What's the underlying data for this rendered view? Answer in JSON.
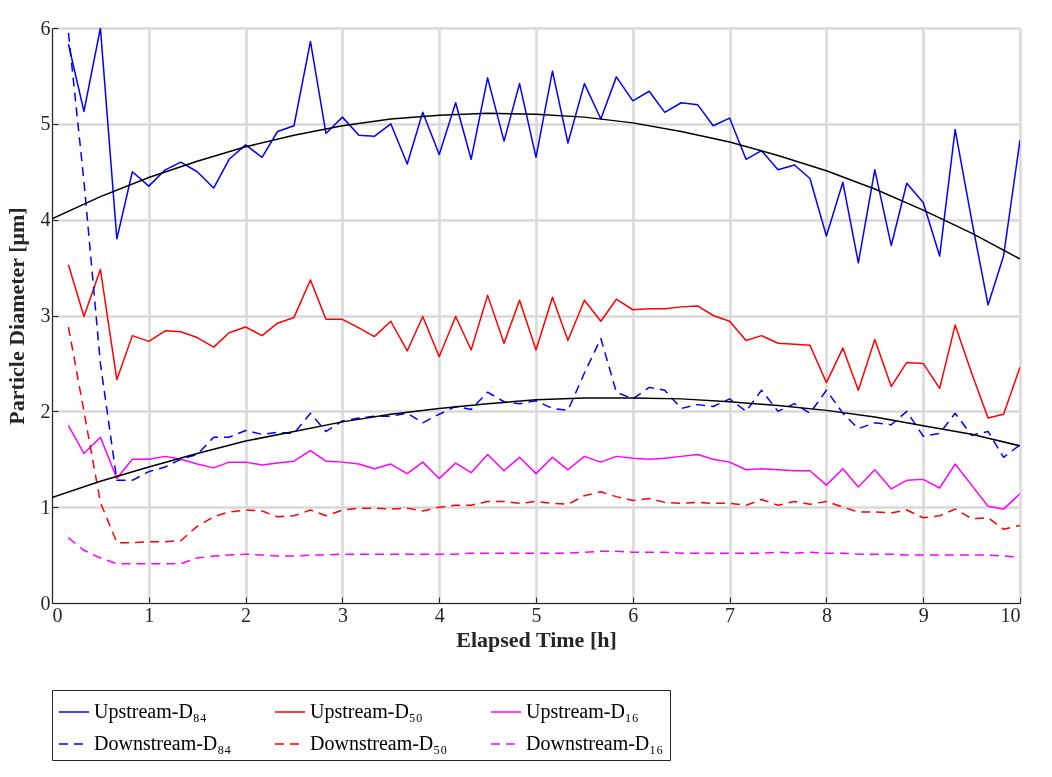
{
  "chart_data": {
    "type": "line",
    "xlabel": "Elapsed Time [h]",
    "ylabel": "Particle Diameter [μm]",
    "x": [
      0.17,
      0.33,
      0.5,
      0.67,
      0.83,
      1,
      1.17,
      1.33,
      1.5,
      1.67,
      1.83,
      2,
      2.17,
      2.33,
      2.5,
      2.67,
      2.83,
      3,
      3.17,
      3.33,
      3.5,
      3.67,
      3.83,
      4,
      4.17,
      4.33,
      4.5,
      4.67,
      4.83,
      5,
      5.17,
      5.33,
      5.5,
      5.67,
      5.83,
      6,
      6.17,
      6.33,
      6.5,
      6.67,
      6.83,
      7,
      7.17,
      7.33,
      7.5,
      7.67,
      7.83,
      8,
      8.17,
      8.33,
      8.5,
      8.67,
      8.83,
      9,
      9.17,
      9.33,
      9.5,
      9.67,
      9.83,
      10
    ],
    "series": [
      {
        "name": "Upstream-D₈₄",
        "color": "#0000ff",
        "line_style": "solid",
        "values": [
          5.83,
          5.13,
          6.0,
          3.8,
          4.5,
          4.35,
          4.52,
          4.6,
          4.5,
          4.33,
          4.63,
          4.78,
          4.65,
          4.92,
          4.98,
          5.86,
          4.9,
          5.07,
          4.88,
          4.87,
          5.0,
          4.58,
          5.12,
          4.68,
          5.22,
          4.63,
          5.48,
          4.82,
          5.42,
          4.65,
          5.55,
          4.8,
          5.42,
          5.05,
          5.49,
          5.24,
          5.34,
          5.12,
          5.22,
          5.2,
          4.98,
          5.06,
          4.63,
          4.72,
          4.52,
          4.57,
          4.43,
          3.83,
          4.39,
          3.55,
          4.52,
          3.73,
          4.38,
          4.18,
          3.62,
          4.94,
          4.0,
          3.11,
          3.62,
          4.83
        ]
      },
      {
        "name": "Upstream-D₅₀",
        "color": "#ff0000",
        "line_style": "solid",
        "values": [
          3.53,
          2.99,
          3.48,
          2.33,
          2.79,
          2.73,
          2.84,
          2.83,
          2.77,
          2.67,
          2.82,
          2.88,
          2.79,
          2.92,
          2.98,
          3.37,
          2.96,
          2.96,
          2.87,
          2.78,
          2.94,
          2.63,
          2.99,
          2.57,
          2.99,
          2.64,
          3.21,
          2.71,
          3.16,
          2.64,
          3.19,
          2.74,
          3.16,
          2.94,
          3.17,
          3.06,
          3.07,
          3.07,
          3.09,
          3.1,
          3.0,
          2.94,
          2.74,
          2.79,
          2.71,
          2.7,
          2.69,
          2.3,
          2.66,
          2.22,
          2.75,
          2.26,
          2.51,
          2.5,
          2.24,
          2.9,
          2.4,
          1.93,
          1.97,
          2.46
        ]
      },
      {
        "name": "Upstream-D₁₆",
        "color": "#ff00ff",
        "line_style": "solid",
        "values": [
          1.85,
          1.56,
          1.73,
          1.3,
          1.5,
          1.5,
          1.53,
          1.5,
          1.45,
          1.41,
          1.47,
          1.47,
          1.44,
          1.46,
          1.48,
          1.59,
          1.48,
          1.47,
          1.45,
          1.4,
          1.45,
          1.35,
          1.47,
          1.3,
          1.46,
          1.36,
          1.55,
          1.38,
          1.52,
          1.35,
          1.52,
          1.39,
          1.53,
          1.47,
          1.53,
          1.51,
          1.5,
          1.51,
          1.53,
          1.55,
          1.5,
          1.47,
          1.39,
          1.4,
          1.39,
          1.38,
          1.38,
          1.23,
          1.4,
          1.21,
          1.39,
          1.19,
          1.28,
          1.29,
          1.2,
          1.45,
          1.23,
          1.01,
          0.98,
          1.14
        ]
      },
      {
        "name": "Downstream-D₈₄",
        "color": "#0000ff",
        "line_style": "dashed",
        "values": [
          5.95,
          4.4,
          2.5,
          1.28,
          1.28,
          1.37,
          1.42,
          1.5,
          1.55,
          1.73,
          1.73,
          1.8,
          1.76,
          1.78,
          1.77,
          1.98,
          1.79,
          1.9,
          1.93,
          1.95,
          1.95,
          1.98,
          1.88,
          1.97,
          2.05,
          2.02,
          2.2,
          2.1,
          2.08,
          2.11,
          2.03,
          2.01,
          2.4,
          2.76,
          2.2,
          2.13,
          2.25,
          2.22,
          2.03,
          2.07,
          2.05,
          2.13,
          2.0,
          2.22,
          2.0,
          2.08,
          1.98,
          2.22,
          1.98,
          1.82,
          1.88,
          1.86,
          2.0,
          1.74,
          1.77,
          1.98,
          1.75,
          1.79,
          1.52,
          1.65
        ]
      },
      {
        "name": "Downstream-D₅₀",
        "color": "#ff0000",
        "line_style": "dashed",
        "values": [
          2.88,
          2.0,
          1.05,
          0.63,
          0.63,
          0.64,
          0.64,
          0.65,
          0.8,
          0.9,
          0.95,
          0.97,
          0.96,
          0.9,
          0.91,
          0.97,
          0.91,
          0.97,
          0.99,
          0.99,
          0.98,
          0.99,
          0.96,
          1.0,
          1.02,
          1.02,
          1.06,
          1.06,
          1.04,
          1.06,
          1.04,
          1.03,
          1.12,
          1.16,
          1.11,
          1.07,
          1.09,
          1.05,
          1.04,
          1.05,
          1.04,
          1.04,
          1.02,
          1.08,
          1.02,
          1.06,
          1.03,
          1.06,
          1.0,
          0.95,
          0.95,
          0.94,
          0.97,
          0.89,
          0.91,
          0.98,
          0.88,
          0.89,
          0.77,
          0.81
        ]
      },
      {
        "name": "Downstream-D₁₆",
        "color": "#ff00ff",
        "line_style": "dashed",
        "values": [
          0.68,
          0.55,
          0.47,
          0.41,
          0.41,
          0.41,
          0.41,
          0.41,
          0.47,
          0.49,
          0.5,
          0.51,
          0.5,
          0.49,
          0.49,
          0.5,
          0.5,
          0.51,
          0.51,
          0.51,
          0.51,
          0.51,
          0.51,
          0.51,
          0.51,
          0.52,
          0.52,
          0.52,
          0.52,
          0.52,
          0.52,
          0.52,
          0.53,
          0.54,
          0.54,
          0.53,
          0.53,
          0.53,
          0.52,
          0.52,
          0.52,
          0.52,
          0.52,
          0.52,
          0.53,
          0.52,
          0.53,
          0.52,
          0.52,
          0.51,
          0.51,
          0.51,
          0.5,
          0.5,
          0.5,
          0.5,
          0.5,
          0.5,
          0.49,
          0.48
        ]
      },
      {
        "type": "line",
        "color": "#000000",
        "line_style": "solid",
        "x": [
          0,
          0.5,
          1,
          1.5,
          2,
          2.5,
          3,
          3.5,
          4,
          4.5,
          5,
          5.5,
          6,
          6.5,
          7,
          7.5,
          8,
          8.5,
          9,
          9.5,
          10
        ],
        "values": [
          4.01,
          4.24,
          4.44,
          4.61,
          4.76,
          4.88,
          4.98,
          5.05,
          5.09,
          5.11,
          5.1,
          5.07,
          5.01,
          4.92,
          4.81,
          4.67,
          4.51,
          4.32,
          4.1,
          3.86,
          3.59
        ]
      },
      {
        "type": "line",
        "color": "#000000",
        "line_style": "solid",
        "x": [
          0,
          0.5,
          1,
          1.5,
          2,
          2.5,
          3,
          3.5,
          4,
          4.5,
          5,
          5.5,
          6,
          6.5,
          7,
          7.5,
          8,
          8.5,
          9,
          9.5,
          10
        ],
        "values": [
          1.1,
          1.27,
          1.42,
          1.56,
          1.69,
          1.79,
          1.89,
          1.97,
          2.03,
          2.08,
          2.12,
          2.14,
          2.14,
          2.13,
          2.1,
          2.06,
          2.01,
          1.94,
          1.85,
          1.76,
          1.64
        ]
      }
    ],
    "xlim": [
      0,
      10
    ],
    "ylim": [
      0,
      6
    ],
    "xticks": [
      0,
      1,
      2,
      3,
      4,
      5,
      6,
      7,
      8,
      9,
      10
    ],
    "yticks": [
      0,
      1,
      2,
      3,
      4,
      5,
      6
    ],
    "grid": true,
    "legend": "bottom"
  }
}
